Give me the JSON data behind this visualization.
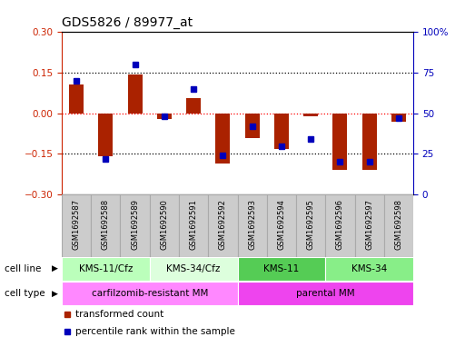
{
  "title": "GDS5826 / 89977_at",
  "samples": [
    "GSM1692587",
    "GSM1692588",
    "GSM1692589",
    "GSM1692590",
    "GSM1692591",
    "GSM1692592",
    "GSM1692593",
    "GSM1692594",
    "GSM1692595",
    "GSM1692596",
    "GSM1692597",
    "GSM1692598"
  ],
  "red_bars": [
    0.105,
    -0.16,
    0.145,
    -0.02,
    0.055,
    -0.185,
    -0.09,
    -0.13,
    -0.01,
    -0.21,
    -0.21,
    -0.03
  ],
  "blue_squares_pct": [
    70,
    22,
    80,
    48,
    65,
    24,
    42,
    30,
    34,
    20,
    20,
    47
  ],
  "ylim_left": [
    -0.3,
    0.3
  ],
  "ylim_right": [
    0,
    100
  ],
  "yticks_left": [
    -0.3,
    -0.15,
    0,
    0.15,
    0.3
  ],
  "yticks_right": [
    0,
    25,
    50,
    75,
    100
  ],
  "hlines": [
    0.15,
    0.0,
    -0.15
  ],
  "cell_line_groups": [
    {
      "label": "KMS-11/Cfz",
      "start": 0,
      "end": 3
    },
    {
      "label": "KMS-34/Cfz",
      "start": 3,
      "end": 6
    },
    {
      "label": "KMS-11",
      "start": 6,
      "end": 9
    },
    {
      "label": "KMS-34",
      "start": 9,
      "end": 12
    }
  ],
  "cell_line_colors": [
    "#bbffbb",
    "#ddffdd",
    "#55cc55",
    "#88ee88"
  ],
  "cell_type_groups": [
    {
      "label": "carfilzomib-resistant MM",
      "start": 0,
      "end": 6
    },
    {
      "label": "parental MM",
      "start": 6,
      "end": 12
    }
  ],
  "cell_type_colors": [
    "#ff88ff",
    "#ee44ee"
  ],
  "cell_line_label": "cell line",
  "cell_type_label": "cell type",
  "legend_red": "transformed count",
  "legend_blue": "percentile rank within the sample",
  "bar_color": "#aa2200",
  "square_color": "#0000bb",
  "background_color": "#ffffff",
  "left_axis_color": "#cc2200",
  "right_axis_color": "#0000bb",
  "sample_box_color": "#cccccc",
  "sample_box_edge": "#aaaaaa"
}
